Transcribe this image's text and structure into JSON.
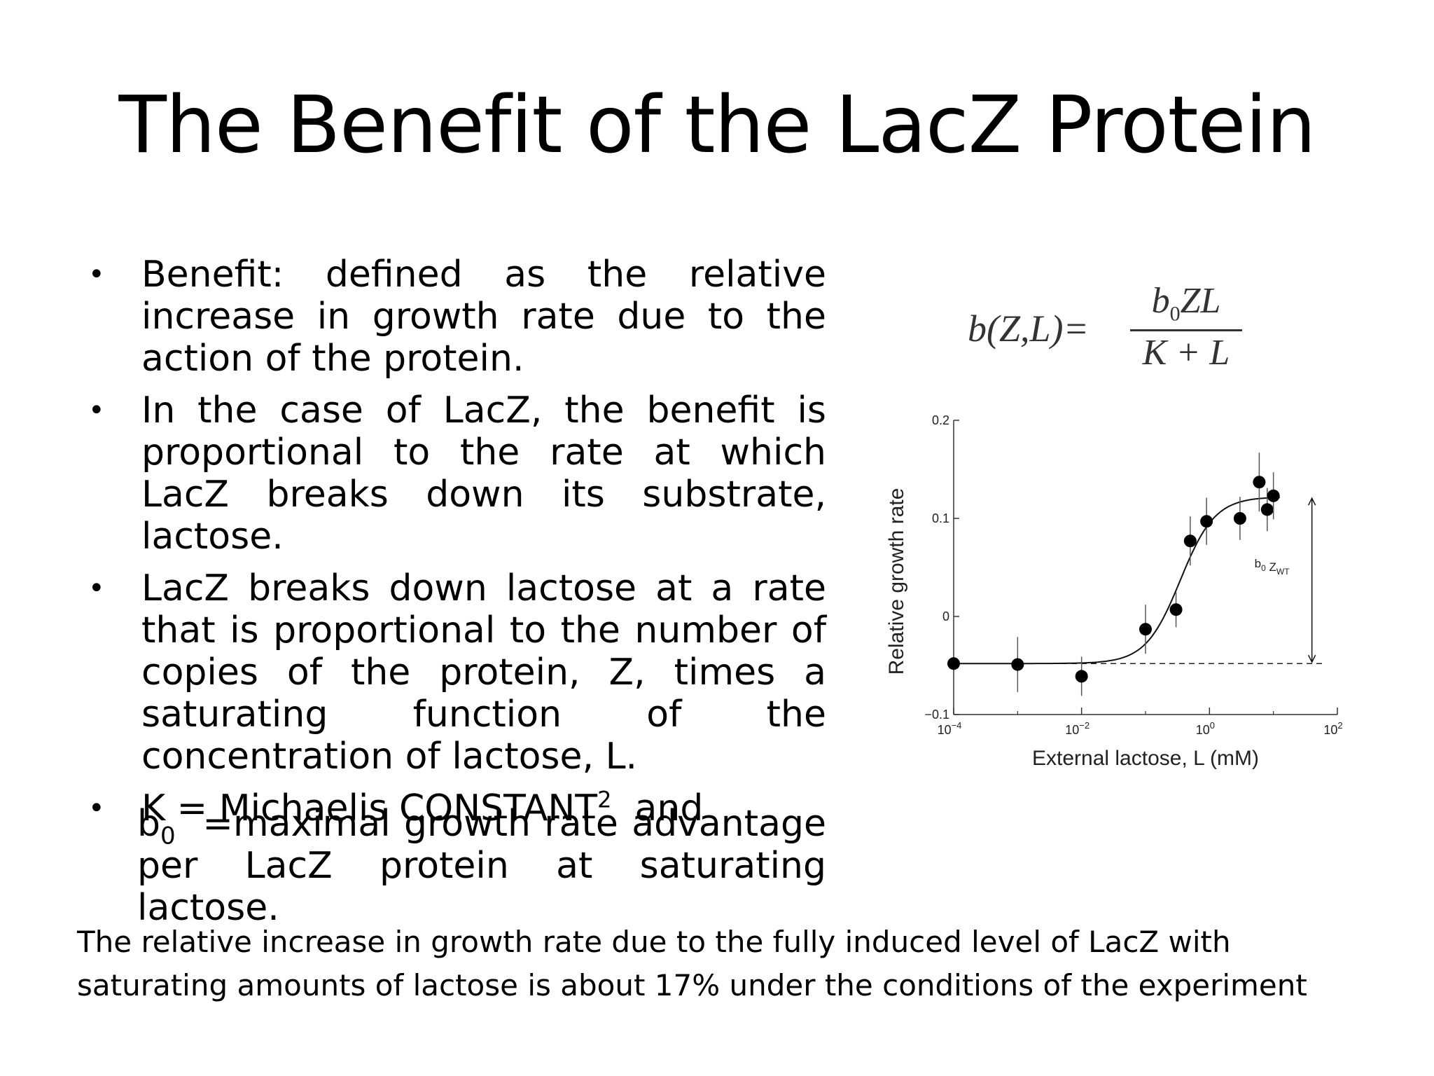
{
  "slide": {
    "title": "The Benefit of the LacZ Protein",
    "bullets": [
      "Benefit: defined as the relative increase in growth rate due to the action of the protein.",
      "In the case of LacZ, the benefit is proportional to the rate at which LacZ breaks down its substrate, lactose.",
      "LacZ breaks down lactose at a rate that is proportional to the number of copies of the protein, Z, times a saturating function of the concentration of lactose, L."
    ],
    "bullet4_text": "K = Michaelis CONSTANT",
    "bullet4_sup": "2",
    "bullet4_tail": "and",
    "b0_symbol": "b",
    "b0_subscript": "0",
    "b0_line1": "=maximal growth rate advantage",
    "b0_line2": "per LacZ protein at saturating lactose.",
    "footnote": "The relative increase in growth rate due to the fully induced level of LacZ with saturating amounts of lactose is about 17% under the conditions of the experiment"
  },
  "formula": {
    "lhs": "b(Z,L)=",
    "numerator": "ZL",
    "numerator_coef": "b",
    "numerator_sub": "0",
    "denominator": "K + L"
  },
  "chart_data": {
    "type": "scatter",
    "xlabel": "External lactose, L (mM)",
    "ylabel": "Relative growth rate",
    "x_scale": "log",
    "xlim": [
      0.0001,
      100
    ],
    "ylim": [
      -0.1,
      0.2
    ],
    "x_ticks": [
      {
        "value": 0.0001,
        "base": "10",
        "exp": "−4"
      },
      {
        "value": 0.01,
        "base": "10",
        "exp": "−2"
      },
      {
        "value": 1,
        "base": "10",
        "exp": "0"
      },
      {
        "value": 100,
        "base": "10",
        "exp": "2"
      }
    ],
    "y_ticks": [
      {
        "value": -0.1,
        "label": "−0.1"
      },
      {
        "value": 0,
        "label": "0"
      },
      {
        "value": 0.1,
        "label": "0.1"
      },
      {
        "value": 0.2,
        "label": "0.2"
      }
    ],
    "points": [
      {
        "x": 0.0001,
        "y": -0.048,
        "err": 0.028
      },
      {
        "x": 0.001,
        "y": -0.049,
        "err": 0.028
      },
      {
        "x": 0.01,
        "y": -0.061,
        "err": 0.02
      },
      {
        "x": 0.1,
        "y": -0.013,
        "err": 0.025
      },
      {
        "x": 0.3,
        "y": 0.007,
        "err": 0.018
      },
      {
        "x": 0.5,
        "y": 0.077,
        "err": 0.025
      },
      {
        "x": 0.9,
        "y": 0.097,
        "err": 0.024
      },
      {
        "x": 3,
        "y": 0.1,
        "err": 0.022
      },
      {
        "x": 6,
        "y": 0.137,
        "err": 0.03
      },
      {
        "x": 8,
        "y": 0.109,
        "err": 0.022
      },
      {
        "x": 10,
        "y": 0.123,
        "err": 0.024
      }
    ],
    "baseline_y": -0.048,
    "plateau_y": 0.122,
    "annotation": {
      "coef": "b",
      "coef_sub": "0",
      "symbol": "Z",
      "symbol_sub": "WT"
    },
    "grid": false,
    "legend": "none"
  }
}
